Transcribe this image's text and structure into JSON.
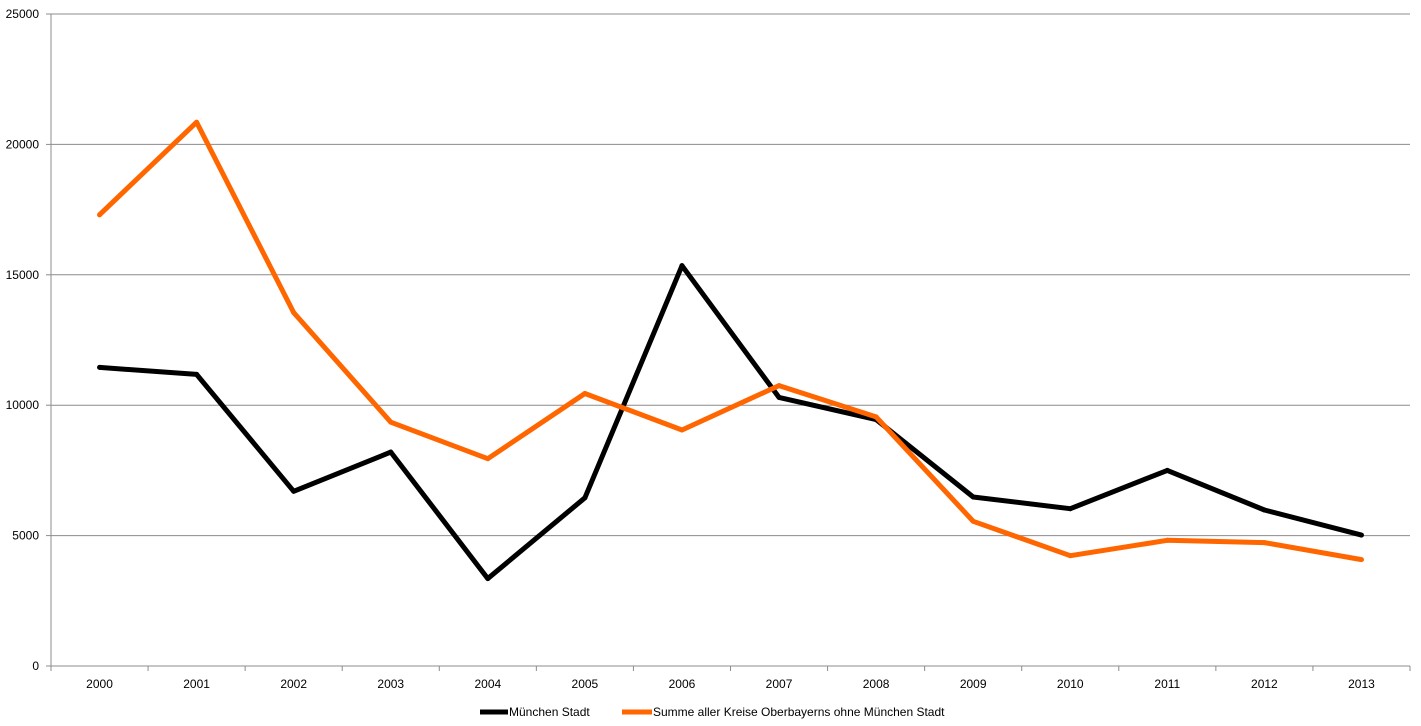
{
  "chart_data": {
    "type": "line",
    "categories": [
      "2000",
      "2001",
      "2002",
      "2003",
      "2004",
      "2005",
      "2006",
      "2007",
      "2008",
      "2009",
      "2010",
      "2011",
      "2012",
      "2013"
    ],
    "series": [
      {
        "name": "München Stadt",
        "color": "#000000",
        "values": [
          11450,
          11180,
          6700,
          8200,
          3350,
          6450,
          15350,
          10300,
          9450,
          6480,
          6030,
          7500,
          5980,
          5020
        ]
      },
      {
        "name": "Summe aller Kreise Oberbayerns ohne München Stadt",
        "color": "#ff6600",
        "values": [
          17300,
          20850,
          13550,
          9350,
          7950,
          10450,
          9050,
          10750,
          9550,
          5550,
          4230,
          4820,
          4730,
          4080
        ]
      }
    ],
    "y_ticks": [
      "0",
      "5000",
      "10000",
      "15000",
      "20000",
      "25000"
    ],
    "ylim": [
      0,
      25000
    ],
    "title": "",
    "xlabel": "",
    "ylabel": "",
    "grid": true,
    "legend_position": "bottom"
  }
}
